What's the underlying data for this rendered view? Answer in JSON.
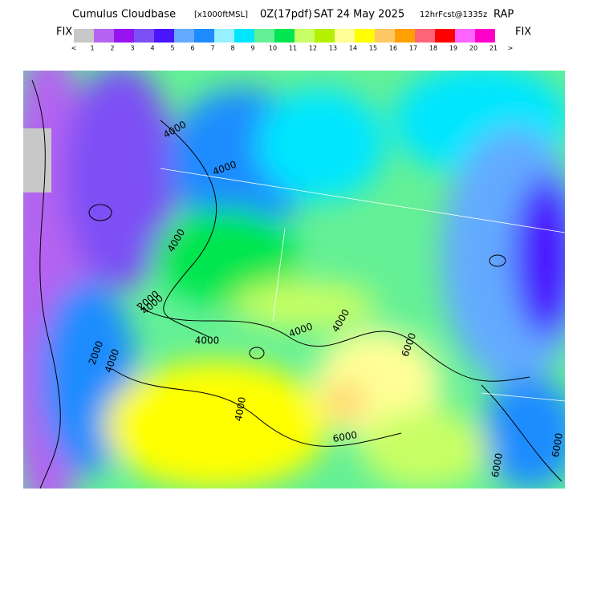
{
  "header": {
    "product": "Cumulus Cloudbase",
    "units": "[x1000ftMSL]",
    "run": "0Z(17pdf)",
    "valid": "SAT 24 May 2025",
    "forecast": "12hrFcst@1335z",
    "model": "RAP"
  },
  "colorbar": {
    "left_label": "FIX",
    "right_label": "FIX",
    "colors": [
      "#c8c8c8",
      "#b464f0",
      "#9614f0",
      "#7d50f5",
      "#4b14ff",
      "#64aaff",
      "#1e8cff",
      "#96f0ff",
      "#00e6ff",
      "#64f096",
      "#00e650",
      "#c8ff64",
      "#b4f000",
      "#ffff96",
      "#ffff00",
      "#ffc864",
      "#ffa000",
      "#ff6478",
      "#ff0000",
      "#ff64ff",
      "#ff00c8"
    ],
    "ticks": [
      "<",
      "1",
      "2",
      "3",
      "4",
      "5",
      "6",
      "7",
      "8",
      "9",
      "10",
      "11",
      "12",
      "13",
      "14",
      "15",
      "16",
      "17",
      "18",
      "19",
      "20",
      "21",
      ">"
    ]
  },
  "contour_labels": [
    "4000",
    "4000",
    "4000",
    "2000",
    "4000",
    "4000",
    "4000",
    "4000",
    "2000",
    "4000",
    "4000",
    "6000",
    "6000",
    "6000",
    "6000"
  ]
}
